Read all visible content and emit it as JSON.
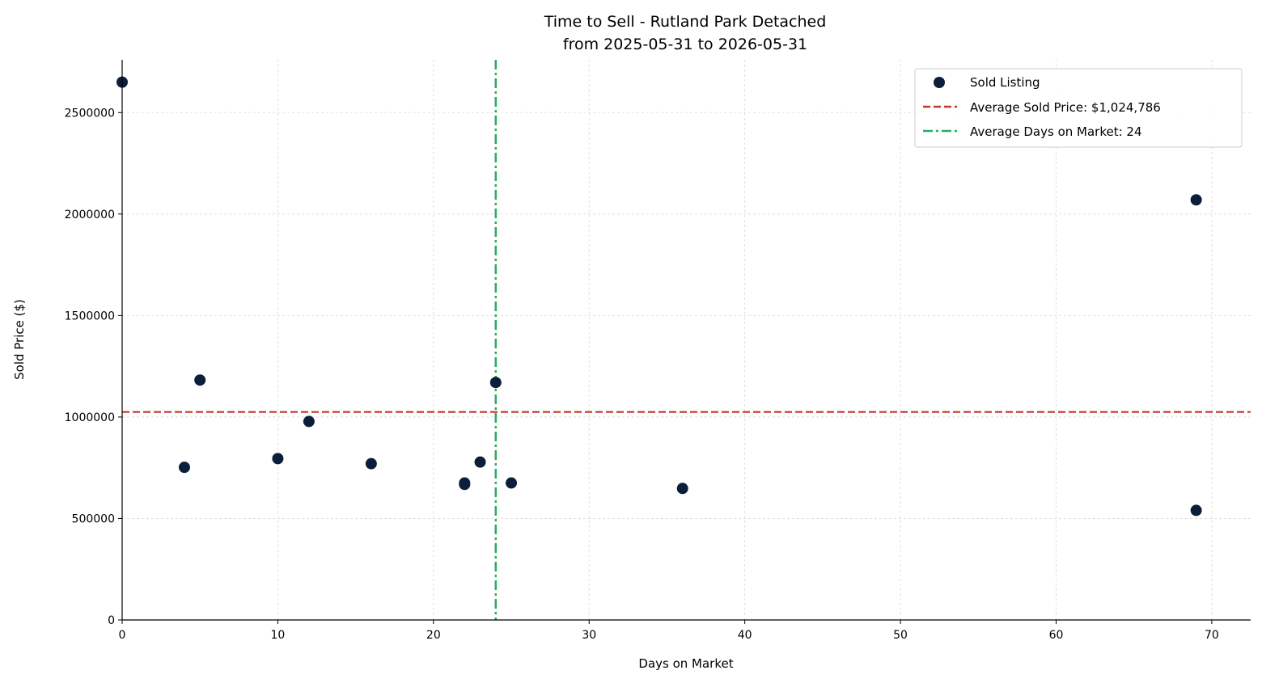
{
  "chart_data": {
    "type": "scatter",
    "title_lines": [
      "Time to Sell - Rutland Park Detached",
      "from 2025-05-31 to 2026-05-31"
    ],
    "xlabel": "Days on Market",
    "ylabel": "Sold Price ($)",
    "xlim": [
      0,
      72.5
    ],
    "ylim": [
      0,
      2760000
    ],
    "x_ticks": [
      0,
      10,
      20,
      30,
      40,
      50,
      60,
      70
    ],
    "y_ticks": [
      0,
      500000,
      1000000,
      1500000,
      2000000,
      2500000
    ],
    "grid": true,
    "legend_position": "top-right",
    "series": [
      {
        "name": "Sold Listing",
        "color": "#0b1f3a",
        "points": [
          {
            "x": 0,
            "y": 2650000
          },
          {
            "x": 4,
            "y": 752000
          },
          {
            "x": 5,
            "y": 1182000
          },
          {
            "x": 10,
            "y": 795000
          },
          {
            "x": 12,
            "y": 978000
          },
          {
            "x": 16,
            "y": 770000
          },
          {
            "x": 22,
            "y": 668000
          },
          {
            "x": 22,
            "y": 675000
          },
          {
            "x": 23,
            "y": 778000
          },
          {
            "x": 24,
            "y": 1170000
          },
          {
            "x": 25,
            "y": 675000
          },
          {
            "x": 36,
            "y": 648000
          },
          {
            "x": 69,
            "y": 2070000
          },
          {
            "x": 69,
            "y": 540000
          }
        ]
      }
    ],
    "reference_lines": [
      {
        "name": "Average Sold Price: $1,024,786",
        "orientation": "horizontal",
        "value": 1024786,
        "color": "#c0392b",
        "style": "dashed"
      },
      {
        "name": "Average Days on Market: 24",
        "orientation": "vertical",
        "value": 24,
        "color": "#27ae60",
        "style": "dashdot"
      }
    ]
  }
}
